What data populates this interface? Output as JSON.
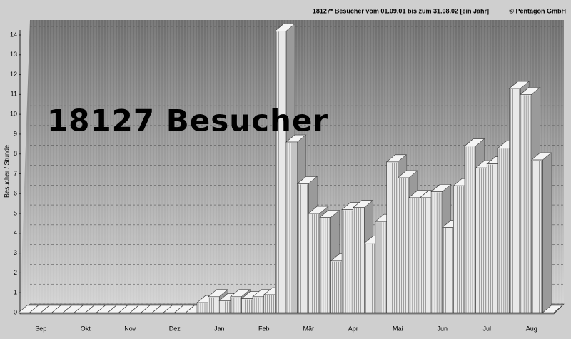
{
  "chart_data": {
    "type": "area3d",
    "title": "18127* Besucher vom 01.09.01 bis zum 31.08.02 [ein Jahr]",
    "copyright": "© Pentagon GmbH",
    "annotation": "18127 Besucher",
    "ylabel": "Besucher / Stunde",
    "categories": [
      "Sep",
      null,
      null,
      null,
      "Okt",
      null,
      null,
      null,
      "Nov",
      null,
      null,
      null,
      "Dez",
      null,
      null,
      null,
      "Jan",
      null,
      null,
      null,
      "Feb",
      null,
      null,
      null,
      "Mär",
      null,
      null,
      null,
      "Apr",
      null,
      null,
      null,
      "Mai",
      null,
      null,
      null,
      "Jun",
      null,
      null,
      null,
      "Jul",
      null,
      null,
      null,
      "Aug",
      null,
      null,
      null
    ],
    "values": [
      0,
      0,
      0,
      0,
      0,
      0,
      0,
      0,
      0,
      0,
      0,
      0,
      0,
      0,
      0,
      0,
      0.5,
      0.8,
      0.6,
      0.8,
      0.7,
      0.8,
      0.9,
      14.2,
      8.6,
      6.5,
      5,
      4.8,
      2.6,
      5.2,
      5.3,
      3.5,
      4.6,
      7.6,
      6.8,
      5.8,
      5.8,
      6.1,
      4.3,
      6.4,
      8.4,
      7.3,
      7.5,
      8.3,
      11.3,
      11,
      7.7,
      0
    ],
    "color": "#e8e8e8",
    "ylim": [
      0,
      14
    ],
    "yticks": [
      0,
      1,
      2,
      3,
      4,
      5,
      6,
      7,
      8,
      9,
      10,
      11,
      12,
      13,
      14
    ],
    "grid": true
  }
}
